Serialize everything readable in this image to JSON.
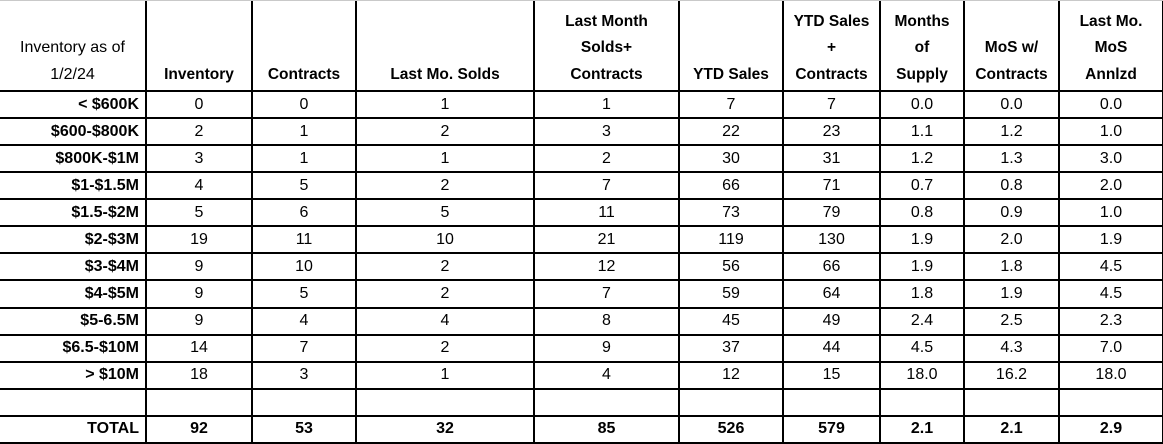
{
  "chart_data": {
    "type": "table",
    "corner_header": "Inventory as of\n1/2/24",
    "column_headers": [
      "Inventory",
      "Contracts",
      "Last Mo. Solds",
      "Last Month\nSolds+\nContracts",
      "YTD Sales",
      "YTD Sales\n+\nContracts",
      "Months\nof\nSupply",
      "MoS w/\nContracts",
      "Last Mo.\nMoS\nAnnlzd"
    ],
    "rows": [
      {
        "label": "< $600K",
        "values": [
          "0",
          "0",
          "1",
          "1",
          "7",
          "7",
          "0.0",
          "0.0",
          "0.0"
        ]
      },
      {
        "label": "$600-$800K",
        "values": [
          "2",
          "1",
          "2",
          "3",
          "22",
          "23",
          "1.1",
          "1.2",
          "1.0"
        ]
      },
      {
        "label": "$800K-$1M",
        "values": [
          "3",
          "1",
          "1",
          "2",
          "30",
          "31",
          "1.2",
          "1.3",
          "3.0"
        ]
      },
      {
        "label": "$1-$1.5M",
        "values": [
          "4",
          "5",
          "2",
          "7",
          "66",
          "71",
          "0.7",
          "0.8",
          "2.0"
        ]
      },
      {
        "label": "$1.5-$2M",
        "values": [
          "5",
          "6",
          "5",
          "11",
          "73",
          "79",
          "0.8",
          "0.9",
          "1.0"
        ]
      },
      {
        "label": "$2-$3M",
        "values": [
          "19",
          "11",
          "10",
          "21",
          "119",
          "130",
          "1.9",
          "2.0",
          "1.9"
        ]
      },
      {
        "label": "$3-$4M",
        "values": [
          "9",
          "10",
          "2",
          "12",
          "56",
          "66",
          "1.9",
          "1.8",
          "4.5"
        ]
      },
      {
        "label": "$4-$5M",
        "values": [
          "9",
          "5",
          "2",
          "7",
          "59",
          "64",
          "1.8",
          "1.9",
          "4.5"
        ]
      },
      {
        "label": "$5-6.5M",
        "values": [
          "9",
          "4",
          "4",
          "8",
          "45",
          "49",
          "2.4",
          "2.5",
          "2.3"
        ]
      },
      {
        "label": "$6.5-$10M",
        "values": [
          "14",
          "7",
          "2",
          "9",
          "37",
          "44",
          "4.5",
          "4.3",
          "7.0"
        ]
      },
      {
        "label": "> $10M",
        "values": [
          "18",
          "3",
          "1",
          "4",
          "12",
          "15",
          "18.0",
          "16.2",
          "18.0"
        ]
      }
    ],
    "empty_row": {
      "label": "",
      "values": [
        "",
        "",
        "",
        "",
        "",
        "",
        "",
        "",
        ""
      ]
    },
    "total_row": {
      "label": "TOTAL",
      "values": [
        "92",
        "53",
        "32",
        "85",
        "526",
        "579",
        "2.1",
        "2.1",
        "2.9"
      ]
    },
    "colors": {
      "background": "#ffffff",
      "text": "#000000",
      "border": "#000000"
    }
  }
}
